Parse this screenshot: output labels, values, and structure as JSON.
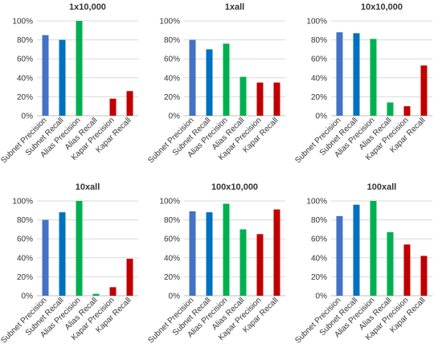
{
  "chart_data": [
    {
      "type": "bar",
      "title": "1x10,000",
      "categories": [
        "Subnet Precision",
        "Subnet Recall",
        "Alias Precision",
        "Alias Recall",
        "Kapar Precision",
        "Kapar Recall"
      ],
      "values": [
        85,
        80,
        100,
        0,
        18,
        26
      ],
      "ylim": [
        0,
        100
      ],
      "yticks": [
        "0%",
        "20%",
        "40%",
        "60%",
        "80%",
        "100%"
      ],
      "grid": true
    },
    {
      "type": "bar",
      "title": "1xall",
      "categories": [
        "Subnet Precision",
        "Subnet Recall",
        "Alias Precision",
        "Alias Recall",
        "Kapar Precision",
        "Kapar Recall"
      ],
      "values": [
        80,
        70,
        76,
        41,
        35,
        35
      ],
      "ylim": [
        0,
        100
      ],
      "yticks": [
        "0%",
        "20%",
        "40%",
        "60%",
        "80%",
        "100%"
      ],
      "grid": true
    },
    {
      "type": "bar",
      "title": "10x10,000",
      "categories": [
        "Subnet Precision",
        "Subnet Recall",
        "Alias Precision",
        "Alias Recall",
        "Kapar Precision",
        "Kapar Recall"
      ],
      "values": [
        88,
        87,
        81,
        14,
        10,
        53
      ],
      "ylim": [
        0,
        100
      ],
      "yticks": [
        "0%",
        "20%",
        "40%",
        "60%",
        "80%",
        "100%"
      ],
      "grid": true
    },
    {
      "type": "bar",
      "title": "10xall",
      "categories": [
        "Subnet Precision",
        "Subnet Recall",
        "Alias Precision",
        "Alias Recall",
        "Kapar Precision",
        "Kapar Recall"
      ],
      "values": [
        80,
        88,
        100,
        2,
        9,
        39
      ],
      "ylim": [
        0,
        100
      ],
      "yticks": [
        "0%",
        "20%",
        "40%",
        "60%",
        "80%",
        "100%"
      ],
      "grid": true
    },
    {
      "type": "bar",
      "title": "100x10,000",
      "categories": [
        "Subnet Precision",
        "Subnet Recall",
        "Alias Precision",
        "Alias Recall",
        "Kapar Precision",
        "Kapar Recall"
      ],
      "values": [
        89,
        88,
        97,
        70,
        65,
        91
      ],
      "ylim": [
        0,
        100
      ],
      "yticks": [
        "0%",
        "20%",
        "40%",
        "60%",
        "80%",
        "100%"
      ],
      "grid": true
    },
    {
      "type": "bar",
      "title": "100xall",
      "categories": [
        "Subnet Precision",
        "Subnet Recall",
        "Alias Precision",
        "Alias Recall",
        "Kapar Precision",
        "Kapar Recall"
      ],
      "values": [
        84,
        96,
        100,
        67,
        54,
        42
      ],
      "ylim": [
        0,
        100
      ],
      "yticks": [
        "0%",
        "20%",
        "40%",
        "60%",
        "80%",
        "100%"
      ],
      "grid": true
    }
  ],
  "colors": {
    "bars": [
      "#4472c4",
      "#0070c0",
      "#00b050",
      "#00b050",
      "#c00000",
      "#c00000"
    ],
    "grid": "#d9d9d9",
    "text": "#333333"
  }
}
